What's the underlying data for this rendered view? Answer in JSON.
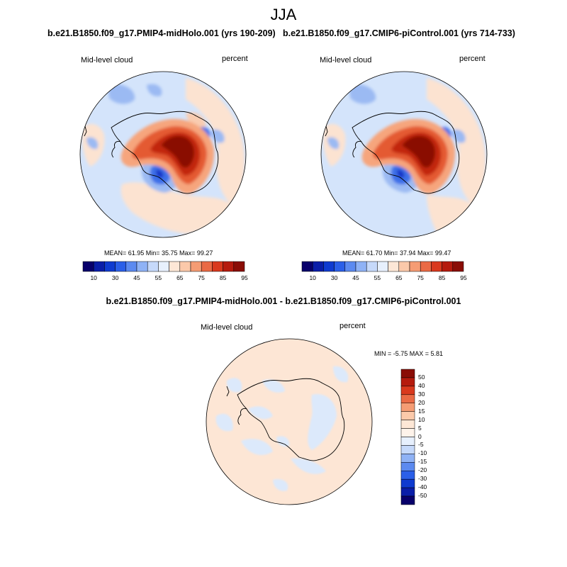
{
  "figure": {
    "season": "JJA",
    "diff_title": "b.e21.B1850.f09_g17.PMIP4-midHolo.001 - b.e21.B1850.f09_g17.CMIP6-piControl.001"
  },
  "panels": [
    {
      "title": "b.e21.B1850.f09_g17.PMIP4-midHolo.001 (yrs 190-209)",
      "variable": "Mid-level cloud",
      "units": "percent",
      "stats": "MEAN=  61.95  Min=  35.75  Max=  99.27"
    },
    {
      "title": "b.e21.B1850.f09_g17.CMIP6-piControl.001 (yrs 714-733)",
      "variable": "Mid-level cloud",
      "units": "percent",
      "stats": "MEAN=  61.70  Min=  37.94  Max=  99.47"
    },
    {
      "title": "",
      "variable": "Mid-level cloud",
      "units": "percent",
      "stats": "MIN =  -5.75 MAX =   5.81"
    }
  ],
  "colorbar_top": {
    "tick_labels": [
      "10",
      "30",
      "45",
      "55",
      "65",
      "75",
      "85",
      "95"
    ],
    "colors": [
      "#08006b",
      "#0a1ea8",
      "#0f3bd0",
      "#2b5fe8",
      "#5c8af0",
      "#8fb2f5",
      "#c6d9fa",
      "#e7f0fd",
      "#fde7d6",
      "#fbc9aa",
      "#f59c74",
      "#ea6a45",
      "#d9391e",
      "#b51b0e",
      "#8a0d06"
    ]
  },
  "colorbar_diff": {
    "tick_labels": [
      "50",
      "40",
      "30",
      "20",
      "15",
      "10",
      "5",
      "0",
      "-5",
      "-10",
      "-15",
      "-20",
      "-30",
      "-40",
      "-50"
    ],
    "colors": [
      "#8a0d06",
      "#b51b0e",
      "#d9391e",
      "#ea6a45",
      "#f59c74",
      "#fbc9aa",
      "#fde7d6",
      "#fef3ea",
      "#e7f0fd",
      "#c6d9fa",
      "#8fb2f5",
      "#5c8af0",
      "#2b5fe8",
      "#0f3bd0",
      "#0a1ea8",
      "#08006b"
    ]
  },
  "map_colors": {
    "ocean_light": "#d4e4fb",
    "ocean_pink": "#fce3d1",
    "ocean_pink2": "#f9ccb0",
    "blue_mid": "#9bbaf3",
    "blue_strong": "#3d6fe8",
    "blue_dark": "#1535c7",
    "red_light": "#f6a57d",
    "red_mid": "#e45a32",
    "red_strong": "#c2250f",
    "red_dark": "#8a0d06",
    "diff_pink": "#fde6d5",
    "diff_blue": "#dce9fb"
  }
}
